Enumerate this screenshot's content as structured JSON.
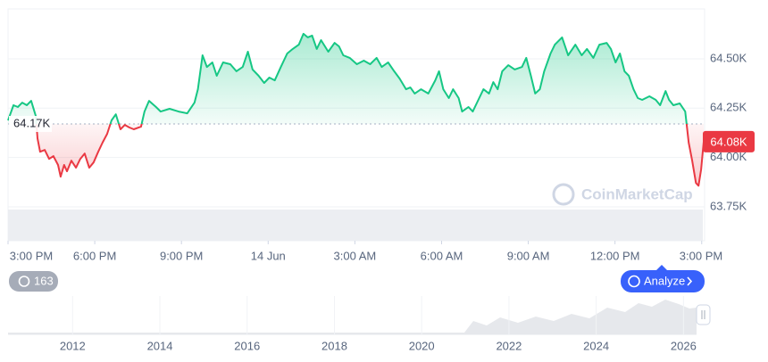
{
  "chart_data": [
    {
      "type": "line",
      "x": [
        0,
        0.19,
        0.34,
        0.49,
        0.65,
        0.8,
        0.96,
        1.02,
        1.11,
        1.27,
        1.42,
        1.57,
        1.73,
        1.82,
        1.94,
        2.04,
        2.19,
        2.35,
        2.5,
        2.65,
        2.81,
        2.96,
        3.12,
        3.27,
        3.43,
        3.58,
        3.73,
        3.89,
        4.04,
        4.2,
        4.35,
        4.6,
        4.72,
        4.88,
        5.12,
        5.28,
        5.59,
        5.9,
        6.2,
        6.45,
        6.57,
        6.73,
        6.88,
        7.07,
        7.22,
        7.44,
        7.69,
        7.9,
        8.12,
        8.3,
        8.46,
        8.67,
        8.86,
        9.04,
        9.23,
        9.44,
        9.66,
        9.85,
        10.06,
        10.22,
        10.37,
        10.52,
        10.68,
        10.83,
        11.08,
        11.3,
        11.45,
        11.6,
        11.82,
        12.07,
        12.31,
        12.53,
        12.75,
        12.93,
        13.15,
        13.36,
        13.55,
        13.77,
        13.92,
        14.07,
        14.29,
        14.54,
        14.78,
        14.91,
        15.06,
        15.25,
        15.4,
        15.59,
        15.71,
        15.93,
        16.08,
        16.3,
        16.45,
        16.64,
        16.79,
        16.94,
        17.1,
        17.31,
        17.53,
        17.78,
        17.93,
        18.09,
        18.24,
        18.4,
        18.55,
        18.77,
        18.92,
        19.17,
        19.38,
        19.63,
        19.85,
        20.03,
        20.25,
        20.46,
        20.71,
        20.86,
        21.02,
        21.17,
        21.33,
        21.48,
        21.64,
        21.79,
        21.94,
        22.19,
        22.41,
        22.56,
        22.75,
        22.87,
        23.02,
        23.24,
        23.43,
        23.55,
        23.67,
        23.8,
        23.89,
        23.98,
        24.07
      ],
      "values": [
        64188,
        64265,
        64256,
        64278,
        64265,
        64287,
        64210,
        64097,
        64029,
        64038,
        63993,
        64007,
        63962,
        63903,
        63962,
        63930,
        63984,
        63948,
        63993,
        64020,
        63948,
        63975,
        64029,
        64075,
        64120,
        64188,
        64219,
        64143,
        64165,
        64152,
        64143,
        64156,
        64233,
        64287,
        64256,
        64233,
        64247,
        64233,
        64224,
        64278,
        64346,
        64518,
        64459,
        64482,
        64414,
        64482,
        64473,
        64437,
        64459,
        64536,
        64446,
        64414,
        64378,
        64405,
        64391,
        64459,
        64527,
        64550,
        64572,
        64627,
        64609,
        64618,
        64550,
        64595,
        64536,
        64581,
        64563,
        64518,
        64505,
        64473,
        64491,
        64473,
        64505,
        64459,
        64482,
        64437,
        64400,
        64346,
        64355,
        64324,
        64346,
        64324,
        64391,
        64437,
        64346,
        64301,
        64346,
        64301,
        64233,
        64256,
        64233,
        64301,
        64346,
        64324,
        64382,
        64346,
        64437,
        64468,
        64446,
        64459,
        64505,
        64414,
        64324,
        64346,
        64437,
        64527,
        64572,
        64609,
        64518,
        64572,
        64518,
        64550,
        64505,
        64572,
        64581,
        64550,
        64482,
        64527,
        64437,
        64414,
        64346,
        64301,
        64292,
        64310,
        64292,
        64265,
        64337,
        64292,
        64265,
        64274,
        64233,
        64075,
        63984,
        63871,
        63857,
        63939,
        64080
      ],
      "last_price": {
        "value": 64080,
        "label": "64.08K"
      },
      "baseline": {
        "value": 64170,
        "label": "64.17K"
      },
      "up_color": "#16c784",
      "down_color": "#ea3943",
      "xlim": [
        0,
        24.1
      ],
      "xticks": [
        {
          "value": 0,
          "label": "3:00 PM"
        },
        {
          "value": 3,
          "label": "6:00 PM"
        },
        {
          "value": 6,
          "label": "9:00 PM"
        },
        {
          "value": 9,
          "label": "14 Jun"
        },
        {
          "value": 12,
          "label": "3:00 AM"
        },
        {
          "value": 15,
          "label": "6:00 AM"
        },
        {
          "value": 18,
          "label": "9:00 AM"
        },
        {
          "value": 21,
          "label": "12:00 PM"
        },
        {
          "value": 24,
          "label": "3:00 PM"
        }
      ],
      "ylim": [
        63578,
        64753
      ],
      "yticks": [
        {
          "value": 63750,
          "label": "63.75K"
        },
        {
          "value": 64000,
          "label": "64.00K"
        },
        {
          "value": 64250,
          "label": "64.25K"
        },
        {
          "value": 64500,
          "label": "64.50K"
        }
      ],
      "grid": true
    },
    {
      "type": "navigator",
      "xlim": [
        2010.52,
        2026.3
      ],
      "xticks": [
        2012,
        2014,
        2016,
        2018,
        2020,
        2022,
        2024,
        2026
      ]
    }
  ],
  "ui": {
    "watermark": "CoinMarketCap",
    "history_count": 163,
    "analyze": "Analyze"
  }
}
